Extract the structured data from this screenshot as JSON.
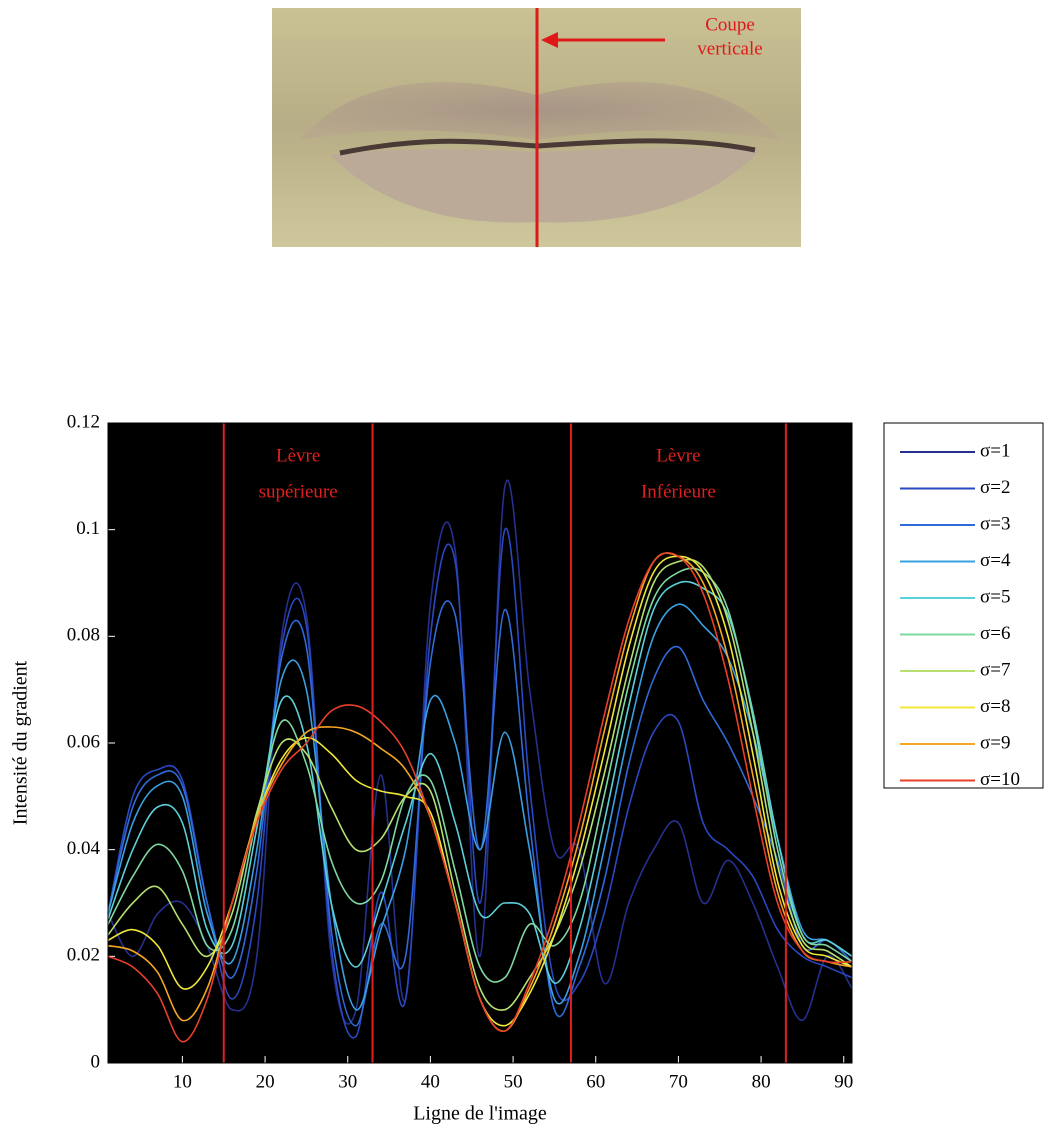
{
  "photo": {
    "annotation_lines": [
      "Coupe",
      "verticale"
    ]
  },
  "chart_data": {
    "type": "line",
    "xlabel": "Ligne de l'image",
    "ylabel": "Intensité du gradient",
    "x": [
      1,
      4,
      7,
      10,
      13,
      16,
      19,
      22,
      25,
      28,
      31,
      34,
      37,
      40,
      43,
      46,
      49,
      52,
      55,
      58,
      61,
      64,
      67,
      70,
      73,
      76,
      79,
      82,
      85,
      88,
      91
    ],
    "xlim": [
      1,
      91
    ],
    "xticks": [
      10,
      20,
      30,
      40,
      50,
      60,
      70,
      80,
      90
    ],
    "ylim": [
      0,
      0.12
    ],
    "yticks": [
      0,
      0.02,
      0.04,
      0.06,
      0.08,
      0.1,
      0.12
    ],
    "vlines": [
      15,
      33,
      57,
      83
    ],
    "vline_color": "#e02020",
    "annotations": [
      [
        "Lèvre",
        "supérieure"
      ],
      [
        "Lèvre",
        "Inférieure"
      ]
    ],
    "legend": "outside-right",
    "background": "#000000",
    "series": [
      {
        "name": "σ=1",
        "color": "#25308f",
        "values": [
          0.028,
          0.02,
          0.028,
          0.03,
          0.022,
          0.01,
          0.02,
          0.08,
          0.084,
          0.02,
          0.01,
          0.054,
          0.012,
          0.086,
          0.096,
          0.02,
          0.108,
          0.07,
          0.04,
          0.04,
          0.015,
          0.03,
          0.04,
          0.045,
          0.03,
          0.038,
          0.03,
          0.018,
          0.008,
          0.02,
          0.014
        ]
      },
      {
        "name": "σ=2",
        "color": "#2a48c0",
        "values": [
          0.028,
          0.05,
          0.055,
          0.053,
          0.03,
          0.012,
          0.03,
          0.078,
          0.082,
          0.022,
          0.005,
          0.032,
          0.012,
          0.08,
          0.094,
          0.03,
          0.1,
          0.052,
          0.015,
          0.015,
          0.028,
          0.048,
          0.062,
          0.064,
          0.045,
          0.04,
          0.035,
          0.025,
          0.02,
          0.018,
          0.016
        ]
      },
      {
        "name": "σ=3",
        "color": "#2f6ad8",
        "values": [
          0.028,
          0.048,
          0.054,
          0.052,
          0.03,
          0.016,
          0.036,
          0.076,
          0.078,
          0.025,
          0.007,
          0.026,
          0.02,
          0.075,
          0.084,
          0.04,
          0.085,
          0.045,
          0.01,
          0.018,
          0.034,
          0.056,
          0.072,
          0.078,
          0.068,
          0.06,
          0.05,
          0.038,
          0.022,
          0.023,
          0.019
        ]
      },
      {
        "name": "σ=4",
        "color": "#3aa0e0",
        "values": [
          0.028,
          0.045,
          0.052,
          0.05,
          0.028,
          0.019,
          0.04,
          0.072,
          0.07,
          0.03,
          0.01,
          0.025,
          0.04,
          0.068,
          0.06,
          0.04,
          0.062,
          0.04,
          0.012,
          0.02,
          0.04,
          0.062,
          0.08,
          0.086,
          0.082,
          0.076,
          0.062,
          0.042,
          0.025,
          0.023,
          0.02
        ]
      },
      {
        "name": "σ=5",
        "color": "#5cd0d8",
        "values": [
          0.027,
          0.04,
          0.048,
          0.045,
          0.025,
          0.022,
          0.044,
          0.068,
          0.06,
          0.03,
          0.018,
          0.03,
          0.045,
          0.058,
          0.045,
          0.028,
          0.03,
          0.028,
          0.015,
          0.025,
          0.045,
          0.067,
          0.085,
          0.09,
          0.089,
          0.084,
          0.066,
          0.042,
          0.024,
          0.023,
          0.02
        ]
      },
      {
        "name": "σ=6",
        "color": "#7fd8a0",
        "values": [
          0.026,
          0.035,
          0.041,
          0.036,
          0.022,
          0.025,
          0.046,
          0.064,
          0.056,
          0.038,
          0.03,
          0.034,
          0.05,
          0.053,
          0.036,
          0.018,
          0.016,
          0.026,
          0.022,
          0.03,
          0.05,
          0.071,
          0.087,
          0.092,
          0.092,
          0.085,
          0.065,
          0.04,
          0.024,
          0.022,
          0.019
        ]
      },
      {
        "name": "σ=7",
        "color": "#b8e070",
        "values": [
          0.024,
          0.03,
          0.033,
          0.026,
          0.02,
          0.028,
          0.047,
          0.06,
          0.058,
          0.048,
          0.04,
          0.042,
          0.05,
          0.051,
          0.032,
          0.014,
          0.01,
          0.016,
          0.024,
          0.036,
          0.054,
          0.074,
          0.09,
          0.094,
          0.093,
          0.083,
          0.062,
          0.037,
          0.023,
          0.021,
          0.018
        ]
      },
      {
        "name": "σ=8",
        "color": "#f0e838",
        "values": [
          0.023,
          0.025,
          0.022,
          0.014,
          0.018,
          0.03,
          0.046,
          0.057,
          0.061,
          0.058,
          0.053,
          0.051,
          0.05,
          0.047,
          0.03,
          0.012,
          0.007,
          0.013,
          0.024,
          0.039,
          0.058,
          0.078,
          0.092,
          0.095,
          0.092,
          0.08,
          0.058,
          0.034,
          0.022,
          0.02,
          0.018
        ]
      },
      {
        "name": "σ=9",
        "color": "#f5a623",
        "values": [
          0.022,
          0.021,
          0.017,
          0.008,
          0.014,
          0.03,
          0.046,
          0.056,
          0.062,
          0.063,
          0.062,
          0.059,
          0.055,
          0.046,
          0.03,
          0.012,
          0.006,
          0.014,
          0.026,
          0.042,
          0.062,
          0.081,
          0.094,
          0.095,
          0.09,
          0.076,
          0.054,
          0.032,
          0.021,
          0.019,
          0.018
        ]
      },
      {
        "name": "σ=10",
        "color": "#e8402a",
        "values": [
          0.02,
          0.018,
          0.013,
          0.004,
          0.012,
          0.03,
          0.045,
          0.055,
          0.06,
          0.066,
          0.067,
          0.064,
          0.058,
          0.046,
          0.03,
          0.012,
          0.006,
          0.015,
          0.028,
          0.045,
          0.065,
          0.083,
          0.094,
          0.095,
          0.088,
          0.072,
          0.05,
          0.03,
          0.021,
          0.019,
          0.019
        ]
      }
    ]
  }
}
